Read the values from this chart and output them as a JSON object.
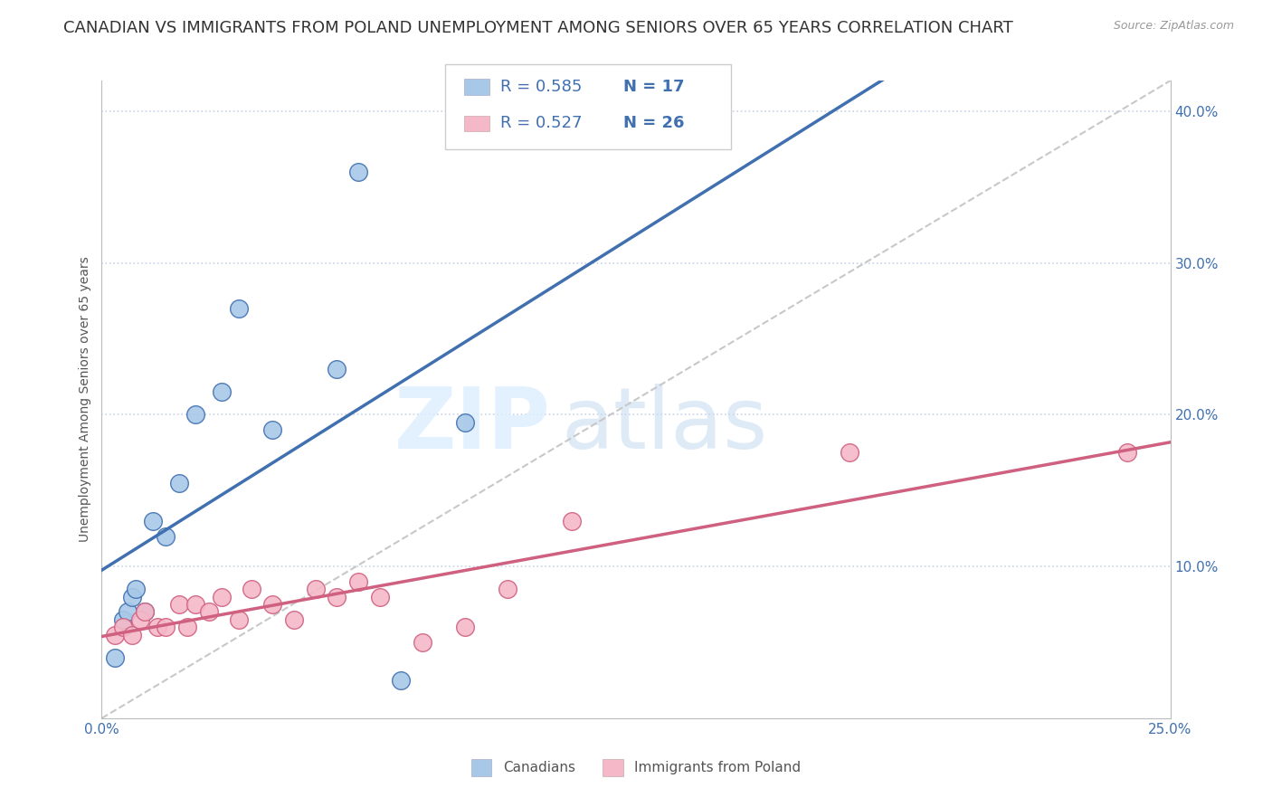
{
  "title": "CANADIAN VS IMMIGRANTS FROM POLAND UNEMPLOYMENT AMONG SENIORS OVER 65 YEARS CORRELATION CHART",
  "source": "Source: ZipAtlas.com",
  "ylabel": "Unemployment Among Seniors over 65 years",
  "xlim": [
    0.0,
    0.25
  ],
  "ylim": [
    0.0,
    0.42
  ],
  "canadian_x": [
    0.003,
    0.005,
    0.006,
    0.007,
    0.008,
    0.01,
    0.012,
    0.015,
    0.018,
    0.022,
    0.028,
    0.032,
    0.04,
    0.055,
    0.06,
    0.07,
    0.085
  ],
  "canadian_y": [
    0.04,
    0.065,
    0.07,
    0.08,
    0.085,
    0.07,
    0.13,
    0.12,
    0.155,
    0.2,
    0.215,
    0.27,
    0.19,
    0.23,
    0.36,
    0.025,
    0.195
  ],
  "poland_x": [
    0.003,
    0.005,
    0.007,
    0.009,
    0.01,
    0.013,
    0.015,
    0.018,
    0.02,
    0.022,
    0.025,
    0.028,
    0.032,
    0.035,
    0.04,
    0.045,
    0.05,
    0.055,
    0.06,
    0.065,
    0.075,
    0.085,
    0.095,
    0.11,
    0.175,
    0.24
  ],
  "poland_y": [
    0.055,
    0.06,
    0.055,
    0.065,
    0.07,
    0.06,
    0.06,
    0.075,
    0.06,
    0.075,
    0.07,
    0.08,
    0.065,
    0.085,
    0.075,
    0.065,
    0.085,
    0.08,
    0.09,
    0.08,
    0.05,
    0.06,
    0.085,
    0.13,
    0.175,
    0.175
  ],
  "canadian_color": "#a8c8e8",
  "poland_color": "#f4b8c8",
  "canadian_line_color": "#4070b0",
  "poland_line_color": "#d06080",
  "diagonal_color": "#c8c8c8",
  "R_canadian": 0.585,
  "N_canadian": 17,
  "R_poland": 0.527,
  "N_poland": 26,
  "background_color": "#ffffff",
  "grid_color": "#c8d4e8",
  "title_fontsize": 13,
  "axis_label_fontsize": 10,
  "tick_fontsize": 11,
  "legend_fontsize": 13
}
